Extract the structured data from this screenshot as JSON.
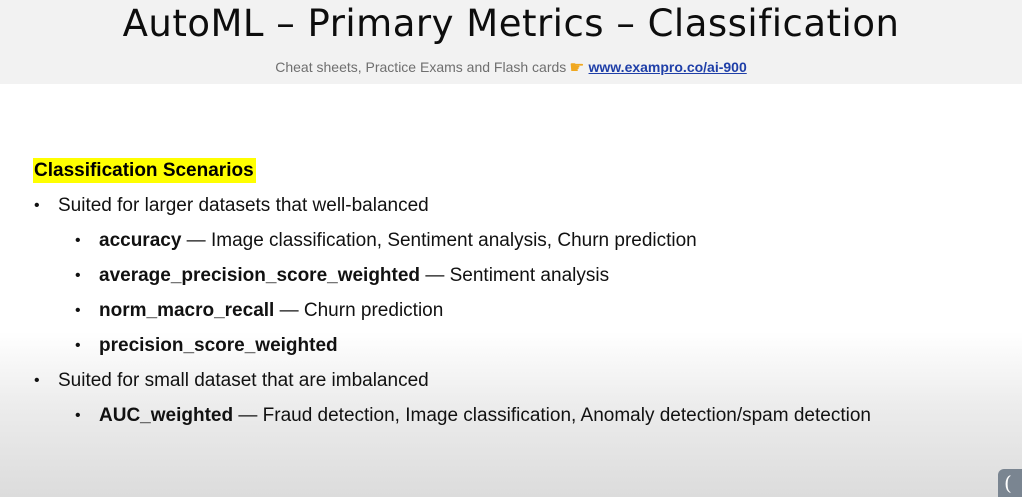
{
  "header": {
    "title": "AutoML – Primary Metrics – Classification",
    "subtitle_text": "Cheat sheets, Practice Exams and Flash cards",
    "subtitle_link": "www.exampro.co/ai-900",
    "hand_icon": "pointing-hand-icon"
  },
  "content": {
    "heading": "Classification Scenarios",
    "groups": [
      {
        "text": "Suited for larger datasets that well-balanced",
        "items": [
          {
            "term": "accuracy",
            "desc": " — Image classification, Sentiment analysis, Churn prediction"
          },
          {
            "term": "average_precision_score_weighted",
            "desc": " — Sentiment analysis"
          },
          {
            "term": "norm_macro_recall",
            "desc": " — Churn prediction"
          },
          {
            "term": "precision_score_weighted",
            "desc": ""
          }
        ]
      },
      {
        "text": "Suited for small dataset that are imbalanced",
        "items": [
          {
            "term": "AUC_weighted",
            "desc": " — Fraud detection, Image classification, Anomaly detection/spam detection"
          }
        ]
      }
    ]
  },
  "bullet_glyph": "•",
  "corner_glyph": "("
}
